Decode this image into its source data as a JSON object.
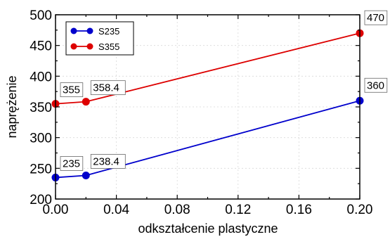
{
  "chart_data": {
    "type": "line",
    "title": "",
    "xlabel": "odkształcenie plastyczne",
    "ylabel": "naprężenie",
    "xlim": [
      0.0,
      0.2
    ],
    "ylim": [
      200,
      500
    ],
    "xticks": [
      0.0,
      0.04,
      0.08,
      0.12,
      0.16,
      0.2
    ],
    "xtick_labels": [
      "0.00",
      "0.04",
      "0.08",
      "0.12",
      "0.16",
      "0.20"
    ],
    "yticks": [
      200,
      250,
      300,
      350,
      400,
      450,
      500
    ],
    "ytick_labels": [
      "200",
      "250",
      "300",
      "350",
      "400",
      "450",
      "500"
    ],
    "grid": true,
    "legend": {
      "position": "top-left"
    },
    "series": [
      {
        "name": "S235",
        "color": "#0000cc",
        "x": [
          0.0,
          0.02,
          0.2
        ],
        "y": [
          235,
          238.4,
          360
        ],
        "labels": [
          "235",
          "238.4",
          "360"
        ]
      },
      {
        "name": "S355",
        "color": "#dd0000",
        "x": [
          0.0,
          0.02,
          0.2
        ],
        "y": [
          355,
          358.4,
          470
        ],
        "labels": [
          "355",
          "358.4",
          "470"
        ]
      }
    ]
  }
}
